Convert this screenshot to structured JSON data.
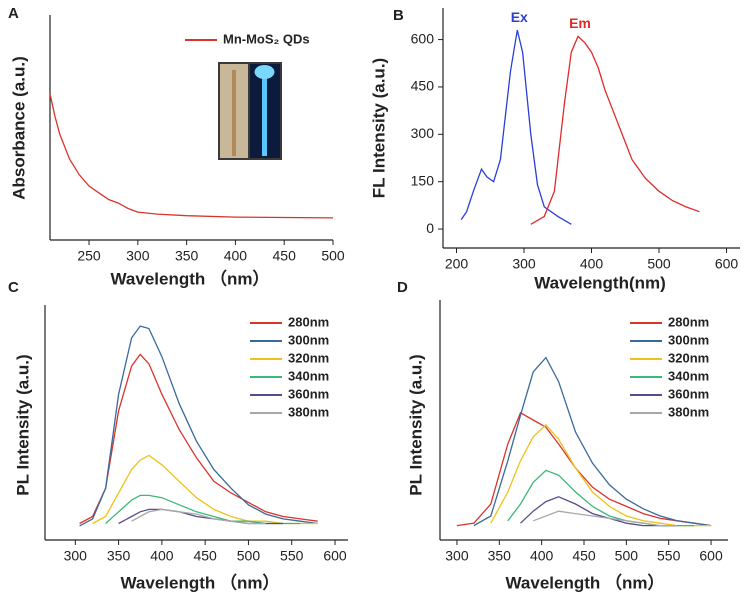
{
  "chart_data": [
    {
      "type": "line",
      "panel_label": "A",
      "xlabel": "Wavelength （nm）",
      "ylabel": "Absorbance (a.u.)",
      "xlim": [
        210,
        500
      ],
      "xticks": [
        250,
        300,
        350,
        400,
        450,
        500
      ],
      "ylim": [
        0,
        1
      ],
      "legend": "upper right",
      "x": [
        210,
        215,
        220,
        230,
        240,
        250,
        260,
        270,
        280,
        290,
        300,
        320,
        350,
        400,
        450,
        500
      ],
      "series": [
        {
          "name": "Mn-MoS₂ QDs",
          "color": "#d9342b",
          "values": [
            0.65,
            0.55,
            0.47,
            0.36,
            0.29,
            0.24,
            0.21,
            0.18,
            0.164,
            0.14,
            0.124,
            0.115,
            0.108,
            0.102,
            0.1,
            0.098
          ]
        }
      ]
    },
    {
      "type": "line",
      "panel_label": "B",
      "xlabel": "Wavelength(nm)",
      "ylabel": "FL Intensity (a.u.)",
      "xlim": [
        180,
        620
      ],
      "xticks": [
        200,
        300,
        400,
        500,
        600
      ],
      "ylim": [
        -60,
        700
      ],
      "yticks": [
        0,
        150,
        300,
        450,
        600
      ],
      "legend": false,
      "series": [
        {
          "name": "Ex",
          "color": "#2a3fd6",
          "x": [
            207,
            215,
            225,
            237,
            245,
            255,
            265,
            280,
            290,
            298,
            310,
            320,
            330,
            350,
            370
          ],
          "values": [
            30,
            55,
            120,
            190,
            165,
            150,
            220,
            500,
            630,
            560,
            300,
            140,
            70,
            40,
            15
          ]
        },
        {
          "name": "Em",
          "color": "#e02a2a",
          "x": [
            310,
            330,
            345,
            360,
            370,
            380,
            390,
            400,
            410,
            420,
            440,
            460,
            480,
            500,
            520,
            540,
            560
          ],
          "values": [
            15,
            40,
            120,
            400,
            560,
            610,
            590,
            560,
            510,
            440,
            330,
            220,
            160,
            120,
            90,
            70,
            55
          ]
        }
      ]
    },
    {
      "type": "line",
      "panel_label": "C",
      "xlabel": "Wavelength （nm）",
      "ylabel": "PL Intensity (a.u.)",
      "xlim": [
        265,
        615
      ],
      "xticks": [
        300,
        350,
        400,
        450,
        500,
        550,
        600
      ],
      "ylim": [
        0,
        1
      ],
      "legend": "upper right",
      "x": [
        305,
        320,
        335,
        350,
        365,
        375,
        385,
        400,
        420,
        440,
        460,
        480,
        500,
        520,
        540,
        560,
        580
      ],
      "series": [
        {
          "name": "280nm",
          "color": "#d9342b",
          "values": [
            0.07,
            0.1,
            0.22,
            0.55,
            0.74,
            0.79,
            0.75,
            0.62,
            0.47,
            0.35,
            0.25,
            0.2,
            0.16,
            0.12,
            0.1,
            0.09,
            0.08
          ]
        },
        {
          "name": "300nm",
          "color": "#3a6a9a",
          "values": [
            0.06,
            0.09,
            0.22,
            0.62,
            0.86,
            0.91,
            0.9,
            0.78,
            0.58,
            0.42,
            0.3,
            0.22,
            0.15,
            0.11,
            0.09,
            0.08,
            0.07
          ]
        },
        {
          "name": "320nm",
          "color": "#eec21a",
          "values": [
            null,
            0.07,
            0.1,
            0.2,
            0.3,
            0.34,
            0.36,
            0.32,
            0.25,
            0.18,
            0.13,
            0.1,
            0.08,
            0.08,
            0.07,
            0.07,
            0.07
          ]
        },
        {
          "name": "340nm",
          "color": "#3cb878",
          "values": [
            null,
            null,
            0.07,
            0.12,
            0.17,
            0.19,
            0.19,
            0.18,
            0.15,
            0.12,
            0.1,
            0.08,
            0.08,
            0.07,
            0.07,
            0.07,
            null
          ]
        },
        {
          "name": "360nm",
          "color": "#5a4a8a",
          "values": [
            null,
            null,
            null,
            0.07,
            0.1,
            0.12,
            0.13,
            0.13,
            0.12,
            0.1,
            0.09,
            0.08,
            0.07,
            0.07,
            0.07,
            null,
            null
          ]
        },
        {
          "name": "380nm",
          "color": "#a8a8a8",
          "values": [
            null,
            null,
            null,
            null,
            0.08,
            0.1,
            0.12,
            0.13,
            0.12,
            0.11,
            0.09,
            0.08,
            0.07,
            0.07,
            null,
            null,
            null
          ]
        }
      ]
    },
    {
      "type": "line",
      "panel_label": "D",
      "xlabel": "Wavelength （nm）",
      "ylabel": "PL Intensity (a.u.)",
      "xlim": [
        280,
        620
      ],
      "xticks": [
        300,
        350,
        400,
        450,
        500,
        550,
        600
      ],
      "ylim": [
        0,
        1
      ],
      "legend": "upper right",
      "x": [
        300,
        320,
        340,
        360,
        375,
        390,
        405,
        420,
        440,
        460,
        480,
        500,
        520,
        540,
        560,
        580,
        600
      ],
      "series": [
        {
          "name": "280nm",
          "color": "#d9342b",
          "values": [
            0.06,
            0.07,
            0.15,
            0.4,
            0.53,
            0.5,
            0.47,
            0.4,
            0.3,
            0.22,
            0.17,
            0.14,
            0.11,
            0.09,
            0.08,
            0.07,
            0.06
          ]
        },
        {
          "name": "300nm",
          "color": "#3a6a9a",
          "values": [
            null,
            0.06,
            0.1,
            0.33,
            0.52,
            0.7,
            0.76,
            0.66,
            0.45,
            0.32,
            0.23,
            0.17,
            0.13,
            0.1,
            0.08,
            0.07,
            0.06
          ]
        },
        {
          "name": "320nm",
          "color": "#eec21a",
          "values": [
            null,
            null,
            0.07,
            0.2,
            0.33,
            0.43,
            0.48,
            0.42,
            0.3,
            0.2,
            0.14,
            0.1,
            0.08,
            0.07,
            0.06,
            0.06,
            0.06
          ]
        },
        {
          "name": "340nm",
          "color": "#3cb878",
          "values": [
            null,
            null,
            null,
            0.08,
            0.15,
            0.24,
            0.29,
            0.27,
            0.2,
            0.14,
            0.1,
            0.08,
            0.07,
            0.06,
            0.06,
            0.06,
            null
          ]
        },
        {
          "name": "360nm",
          "color": "#5a4a8a",
          "values": [
            null,
            null,
            null,
            null,
            0.07,
            0.12,
            0.16,
            0.18,
            0.15,
            0.11,
            0.09,
            0.07,
            0.06,
            0.06,
            0.06,
            null,
            null
          ]
        },
        {
          "name": "380nm",
          "color": "#a8a8a8",
          "values": [
            null,
            null,
            null,
            null,
            null,
            0.08,
            0.1,
            0.12,
            0.11,
            0.1,
            0.09,
            0.08,
            0.07,
            0.06,
            0.06,
            null,
            null
          ]
        }
      ]
    }
  ]
}
